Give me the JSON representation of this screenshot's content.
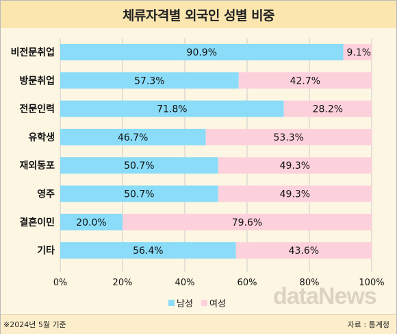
{
  "title": "체류자격별 외국인 성별 비중",
  "footnote": "※2024년 5월 기준",
  "source": "자료 : 통계청",
  "watermark": "dataNews",
  "colors": {
    "male": "#8adcf8",
    "female": "#fdd1dc",
    "grid": "#c9c9c9"
  },
  "legend": [
    {
      "name": "남성",
      "color": "#8adcf8"
    },
    {
      "name": "여성",
      "color": "#fdd1dc"
    }
  ],
  "chart_data": {
    "type": "bar",
    "orientation": "horizontal",
    "stacked": true,
    "categories": [
      "비전문취업",
      "방문취업",
      "전문인력",
      "유학생",
      "재외동포",
      "영주",
      "결혼이민",
      "기타"
    ],
    "series": [
      {
        "name": "남성",
        "values": [
          90.9,
          57.3,
          71.8,
          46.7,
          50.7,
          50.7,
          20.0,
          56.4
        ]
      },
      {
        "name": "여성",
        "values": [
          9.1,
          42.7,
          28.2,
          53.3,
          49.3,
          49.3,
          79.6,
          43.6
        ]
      }
    ],
    "xlim": [
      0,
      100
    ],
    "xticks": [
      "0%",
      "20%",
      "40%",
      "60%",
      "80%",
      "100%"
    ],
    "grid": true,
    "legend_position": "bottom"
  }
}
